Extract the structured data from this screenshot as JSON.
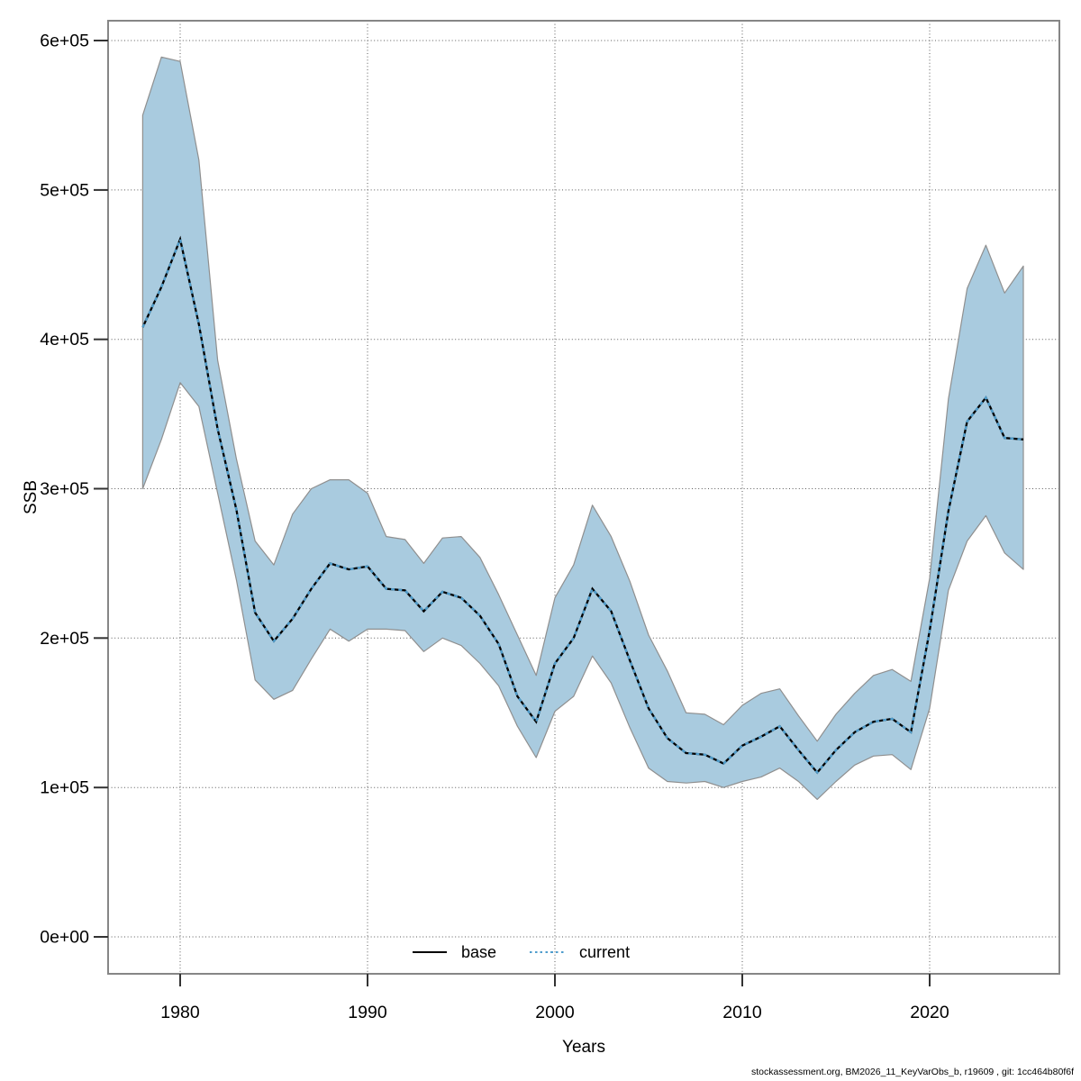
{
  "figure": {
    "xlabel": "Years",
    "ylabel": "SSB",
    "footer": "stockassessment.org, BM2026_11_KeyVarObs_b, r19609 , git: 1cc464b80f6f",
    "legend": [
      {
        "label": "base",
        "style": "solid",
        "color": "#000000"
      },
      {
        "label": "current",
        "style": "dotted",
        "color": "#4f9dcc"
      }
    ]
  },
  "chart_data": {
    "type": "area",
    "title": "",
    "xlabel": "Years",
    "ylabel": "SSB",
    "xlim": [
      1976.2,
      2026.9
    ],
    "ylim": [
      -24700,
      613300
    ],
    "grid": "dotted",
    "legend_position": "bottom-center",
    "x_ticks": [
      1980,
      1990,
      2000,
      2010,
      2020
    ],
    "x_tick_labels": [
      "1980",
      "1990",
      "2000",
      "2010",
      "2020"
    ],
    "y_ticks": [
      0,
      100000,
      200000,
      300000,
      400000,
      500000,
      600000
    ],
    "y_tick_labels": [
      "0e+00",
      "1e+05",
      "2e+05",
      "3e+05",
      "4e+05",
      "5e+05",
      "6e+05"
    ],
    "colors": {
      "band": "#a9cbdf",
      "band_edge": "#8f8f8f",
      "base_line": "#000000",
      "current_line": "#4f9dcc",
      "grid": "#5a5a5a",
      "frame": "#868686",
      "tick": "#333333"
    },
    "years": [
      1978,
      1979,
      1980,
      1981,
      1982,
      1983,
      1984,
      1985,
      1986,
      1987,
      1988,
      1989,
      1990,
      1991,
      1992,
      1993,
      1994,
      1995,
      1996,
      1997,
      1998,
      1999,
      2000,
      2001,
      2002,
      2003,
      2004,
      2005,
      2006,
      2007,
      2008,
      2009,
      2010,
      2011,
      2012,
      2013,
      2014,
      2015,
      2016,
      2017,
      2018,
      2019,
      2020,
      2021,
      2022,
      2023,
      2024,
      2025
    ],
    "series": [
      {
        "name": "base",
        "line_style": "solid",
        "color": "#000000",
        "values": [
          408000,
          435000,
          467000,
          410000,
          340000,
          286000,
          217000,
          198000,
          213000,
          233000,
          250000,
          246000,
          248000,
          233000,
          232000,
          218000,
          231000,
          227000,
          215000,
          196000,
          161000,
          144000,
          183000,
          200000,
          233000,
          218000,
          185000,
          153000,
          133000,
          123000,
          122000,
          116000,
          128000,
          134000,
          141000,
          125000,
          110000,
          125000,
          137000,
          144000,
          146000,
          137000,
          205000,
          285000,
          345000,
          361000,
          334000,
          333000
        ]
      },
      {
        "name": "current",
        "line_style": "dotted",
        "color": "#4f9dcc",
        "values": [
          408000,
          435000,
          467000,
          410000,
          340000,
          286000,
          217000,
          198000,
          213000,
          233000,
          250000,
          246000,
          248000,
          233000,
          232000,
          218000,
          231000,
          227000,
          215000,
          196000,
          161000,
          144000,
          183000,
          200000,
          233000,
          218000,
          185000,
          153000,
          133000,
          123000,
          122000,
          116000,
          128000,
          134000,
          141000,
          125000,
          110000,
          125000,
          137000,
          144000,
          146000,
          137000,
          205000,
          285000,
          345000,
          361000,
          334000,
          333000
        ],
        "ci_low": [
          300000,
          333000,
          371000,
          355000,
          297000,
          239000,
          172000,
          159000,
          165000,
          186000,
          206000,
          198000,
          206000,
          206000,
          205000,
          191000,
          200000,
          195000,
          183000,
          168000,
          141000,
          120000,
          151000,
          161000,
          188000,
          170000,
          140000,
          113000,
          104000,
          103000,
          104000,
          100000,
          104000,
          107000,
          113000,
          104000,
          92000,
          104000,
          115000,
          121000,
          122000,
          112000,
          153000,
          232000,
          265000,
          282000,
          257000,
          246000
        ],
        "ci_high": [
          550000,
          589000,
          586000,
          520000,
          386000,
          320000,
          265000,
          249000,
          283000,
          300000,
          306000,
          306000,
          297000,
          268000,
          266000,
          250000,
          267000,
          268000,
          254000,
          229000,
          202000,
          175000,
          227000,
          249000,
          289000,
          268000,
          238000,
          202000,
          178000,
          150000,
          149000,
          142000,
          155000,
          163000,
          166000,
          148000,
          131000,
          149000,
          163000,
          175000,
          179000,
          171000,
          240000,
          360000,
          434000,
          463000,
          431000,
          449000
        ]
      }
    ]
  }
}
